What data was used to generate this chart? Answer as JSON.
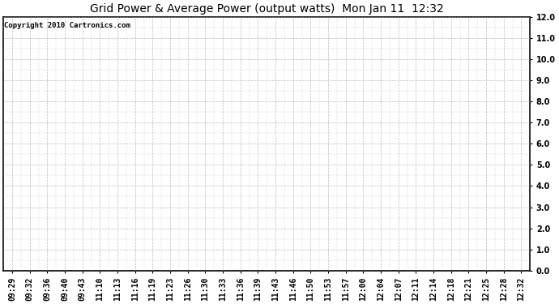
{
  "title": "Grid Power & Average Power (output watts)  Mon Jan 11  12:32",
  "copyright_text": "Copyright 2010 Cartronics.com",
  "x_labels": [
    "09:29",
    "09:32",
    "09:36",
    "09:40",
    "09:43",
    "11:10",
    "11:13",
    "11:16",
    "11:19",
    "11:23",
    "11:26",
    "11:30",
    "11:33",
    "11:36",
    "11:39",
    "11:43",
    "11:46",
    "11:50",
    "11:53",
    "11:57",
    "12:00",
    "12:04",
    "12:07",
    "12:11",
    "12:14",
    "12:18",
    "12:21",
    "12:25",
    "12:28",
    "12:32"
  ],
  "y_min": 0.0,
  "y_max": 12.0,
  "y_step": 1.0,
  "background_color": "#ffffff",
  "plot_background_color": "#ffffff",
  "grid_color": "#aaaaaa",
  "title_fontsize": 10,
  "copyright_fontsize": 6.5,
  "tick_fontsize": 7,
  "border_color": "#000000"
}
